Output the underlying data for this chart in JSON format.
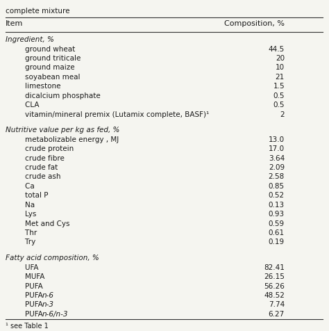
{
  "title_above": "complete mixture",
  "header": [
    "Item",
    "Composition, %"
  ],
  "sections": [
    {
      "section_label": "Ingredient, %",
      "italic": true,
      "rows": [
        [
          "    ground wheat",
          "44.5"
        ],
        [
          "    ground triticale",
          "20"
        ],
        [
          "    ground maize",
          "10"
        ],
        [
          "    soyabean meal",
          "21"
        ],
        [
          "    limestone",
          "1.5"
        ],
        [
          "    dicalcium phosphate",
          "0.5"
        ],
        [
          "    CLA",
          "0.5"
        ],
        [
          "    vitamin/mineral premix (Lutamix complete, BASF)¹",
          "2"
        ]
      ]
    },
    {
      "section_label": "Nutritive value per kg as fed, %",
      "italic": true,
      "rows": [
        [
          "    metabolizable energy , MJ",
          "13.0"
        ],
        [
          "    crude protein",
          "17.0"
        ],
        [
          "    crude fibre",
          "3.64"
        ],
        [
          "    crude fat",
          "2.09"
        ],
        [
          "    crude ash",
          "2.58"
        ],
        [
          "    Ca",
          "0.85"
        ],
        [
          "    total P",
          "0.52"
        ],
        [
          "    Na",
          "0.13"
        ],
        [
          "    Lys",
          "0.93"
        ],
        [
          "    Met and Cys",
          "0.59"
        ],
        [
          "    Thr",
          "0.61"
        ],
        [
          "    Try",
          "0.19"
        ]
      ]
    },
    {
      "section_label": "Fatty acid composition, %",
      "italic": true,
      "rows": [
        [
          "    UFA",
          "82.41"
        ],
        [
          "    MUFA",
          "26.15"
        ],
        [
          "    PUFA",
          "56.26"
        ],
        [
          "    PUFA n-6",
          "48.52"
        ],
        [
          "    PUFA n-3",
          "7.74"
        ],
        [
          "    PUFA n-6/n-3",
          "6.27"
        ]
      ]
    }
  ],
  "footnote": "¹ see Table 1",
  "bg_color": "#f5f5f0",
  "text_color": "#1a1a1a",
  "font_size": 7.5,
  "header_font_size": 8.0,
  "italic_rows": {
    "PUFA n-6": true,
    "PUFA n-3": true,
    "PUFA n-6/n-3": true
  }
}
